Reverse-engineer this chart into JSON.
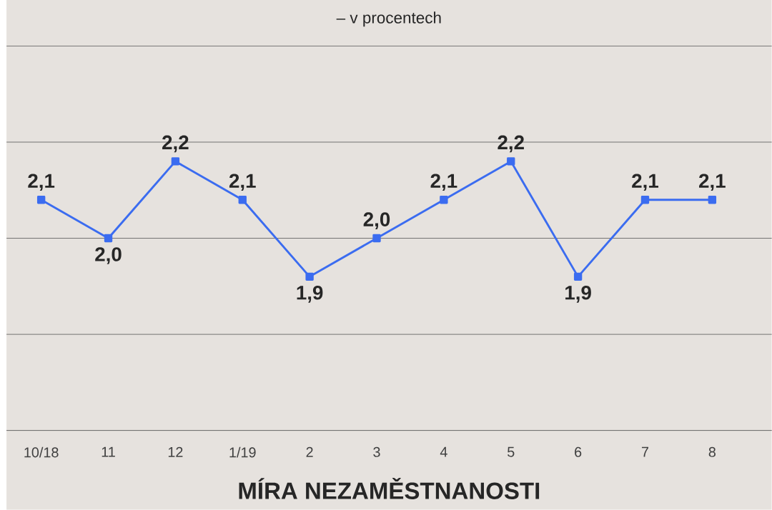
{
  "chart_data": {
    "type": "line",
    "title": "MÍRA NEZAMĚSTNANOSTI",
    "subtitle": "– v procentech",
    "categories": [
      "10/18",
      "11",
      "12",
      "1/19",
      "2",
      "3",
      "4",
      "5",
      "6",
      "7",
      "8"
    ],
    "series": [
      {
        "color": "#3b6cf0",
        "values": [
          2.1,
          2.0,
          2.2,
          2.1,
          1.9,
          2.0,
          2.1,
          2.2,
          1.9,
          2.1,
          2.1
        ],
        "value_labels": [
          "2,1",
          "2,0",
          "2,2",
          "2,1",
          "1,9",
          "2,0",
          "2,1",
          "2,2",
          "1,9",
          "2,1",
          "2,1"
        ]
      }
    ],
    "ylim": [
      1.5,
      2.5
    ],
    "yticks": [
      {
        "value": 1.5,
        "label": null
      },
      {
        "value": 1.75,
        "label": null
      },
      {
        "value": 2.0,
        "label": null
      },
      {
        "value": 2.25,
        "label": null
      },
      {
        "value": 2.5,
        "label": null
      }
    ],
    "tick_labels": "x",
    "grid": "y",
    "marker": "square",
    "line_style": "solid"
  }
}
